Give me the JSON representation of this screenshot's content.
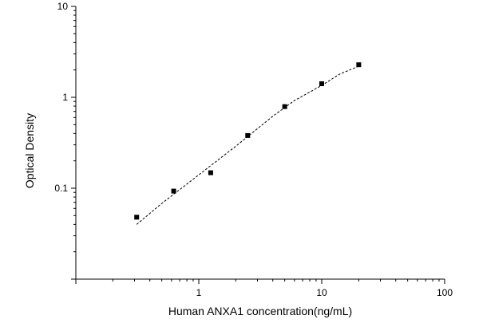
{
  "chart_data": {
    "type": "scatter",
    "title": "",
    "xlabel": "Human ANXA1 concentration(ng/mL)",
    "ylabel": "Optical Density",
    "x_scale": "log",
    "y_scale": "log",
    "xlim": [
      0.1,
      100
    ],
    "ylim": [
      0.01,
      10
    ],
    "grid": false,
    "legend": "none",
    "x_ticks": [
      {
        "value": 1,
        "label": "1"
      },
      {
        "value": 10,
        "label": "10"
      },
      {
        "value": 100,
        "label": "100"
      }
    ],
    "y_ticks": [
      {
        "value": 0.1,
        "label": "0.1"
      },
      {
        "value": 1,
        "label": "1"
      },
      {
        "value": 10,
        "label": "10"
      }
    ],
    "series": [
      {
        "marker": "square",
        "color": "#000000",
        "x": [
          0.3125,
          0.625,
          1.25,
          2.5,
          5,
          10,
          20
        ],
        "y": [
          0.048,
          0.093,
          0.148,
          0.38,
          0.79,
          1.41,
          2.28
        ]
      }
    ],
    "fit_curve": {
      "style": "dashed",
      "color": "#000000",
      "x": [
        0.3125,
        0.5,
        1,
        2,
        4,
        6,
        10,
        14,
        20
      ],
      "y": [
        0.04,
        0.068,
        0.14,
        0.29,
        0.62,
        0.92,
        1.35,
        1.8,
        2.2
      ]
    }
  }
}
